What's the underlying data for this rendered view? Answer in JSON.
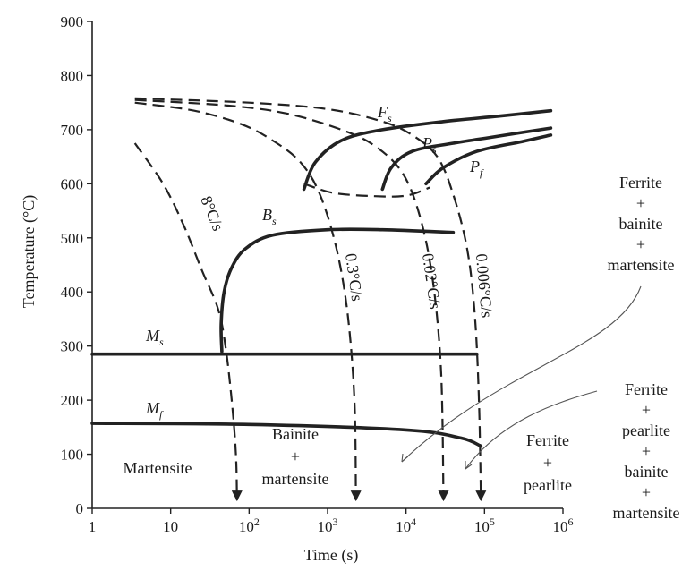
{
  "chart_data": {
    "type": "line",
    "title": "",
    "xlabel": "Time (s)",
    "ylabel": "Temperature (°C)",
    "x_scale": "log",
    "xlim": [
      1,
      1000000
    ],
    "ylim": [
      0,
      900
    ],
    "grid": false,
    "x_ticks": [
      {
        "value": 1,
        "base": "1",
        "exp": ""
      },
      {
        "value": 10,
        "base": "10",
        "exp": ""
      },
      {
        "value": 100,
        "base": "10",
        "exp": "2"
      },
      {
        "value": 1000,
        "base": "10",
        "exp": "3"
      },
      {
        "value": 10000,
        "base": "10",
        "exp": "4"
      },
      {
        "value": 100000,
        "base": "10",
        "exp": "5"
      },
      {
        "value": 1000000,
        "base": "10",
        "exp": "6"
      }
    ],
    "y_ticks": [
      0,
      100,
      200,
      300,
      400,
      500,
      600,
      700,
      800,
      900
    ],
    "transformation_curves": [
      {
        "label_base": "F",
        "label_sub": "s",
        "points": [
          [
            500,
            590
          ],
          [
            700,
            640
          ],
          [
            1500,
            680
          ],
          [
            5000,
            700
          ],
          [
            30000,
            715
          ],
          [
            150000,
            725
          ],
          [
            700000,
            735
          ]
        ]
      },
      {
        "label_base": "P",
        "label_sub": "s",
        "points": [
          [
            5000,
            590
          ],
          [
            6500,
            630
          ],
          [
            12000,
            660
          ],
          [
            40000,
            675
          ],
          [
            150000,
            688
          ],
          [
            700000,
            703
          ]
        ]
      },
      {
        "label_base": "P",
        "label_sub": "f",
        "points": [
          [
            18000,
            600
          ],
          [
            30000,
            630
          ],
          [
            80000,
            660
          ],
          [
            300000,
            678
          ],
          [
            700000,
            690
          ]
        ]
      },
      {
        "label_base": "B",
        "label_sub": "s",
        "points": [
          [
            40000,
            510
          ],
          [
            5000,
            515
          ],
          [
            1000,
            515
          ],
          [
            200,
            505
          ],
          [
            90,
            480
          ],
          [
            60,
            445
          ],
          [
            48,
            400
          ],
          [
            44,
            340
          ],
          [
            45,
            290
          ]
        ]
      },
      {
        "label_base": "M",
        "label_sub": "s",
        "points": [
          [
            1,
            285
          ],
          [
            80000,
            285
          ]
        ]
      },
      {
        "label_base": "M",
        "label_sub": "f",
        "points": [
          [
            1,
            157
          ],
          [
            100,
            155
          ],
          [
            10000,
            145
          ],
          [
            50000,
            130
          ],
          [
            90000,
            115
          ]
        ]
      }
    ],
    "cooling_curves": [
      {
        "rate_label": "8°C/s",
        "points": [
          [
            3.5,
            675
          ],
          [
            8,
            600
          ],
          [
            15,
            520
          ],
          [
            25,
            440
          ],
          [
            40,
            370
          ],
          [
            50,
            300
          ],
          [
            60,
            200
          ],
          [
            68,
            100
          ],
          [
            70,
            15
          ]
        ]
      },
      {
        "rate_label": "0.3°C/s",
        "points": [
          [
            3.5,
            750
          ],
          [
            20,
            735
          ],
          [
            80,
            710
          ],
          [
            200,
            680
          ],
          [
            450,
            640
          ],
          [
            800,
            580
          ],
          [
            1300,
            480
          ],
          [
            1800,
            360
          ],
          [
            2200,
            200
          ],
          [
            2300,
            15
          ]
        ]
      },
      {
        "rate_label": "0.02°C/s",
        "points": [
          [
            3.5,
            755
          ],
          [
            50,
            745
          ],
          [
            300,
            730
          ],
          [
            1500,
            700
          ],
          [
            4000,
            670
          ],
          [
            9000,
            620
          ],
          [
            15000,
            540
          ],
          [
            22000,
            420
          ],
          [
            28000,
            250
          ],
          [
            30000,
            15
          ]
        ]
      },
      {
        "rate_label": "0.006°C/s",
        "points": [
          [
            3.5,
            758
          ],
          [
            100,
            750
          ],
          [
            1000,
            738
          ],
          [
            5000,
            715
          ],
          [
            12000,
            690
          ],
          [
            25000,
            650
          ],
          [
            40000,
            580
          ],
          [
            60000,
            480
          ],
          [
            75000,
            360
          ],
          [
            85000,
            200
          ],
          [
            90000,
            15
          ]
        ]
      },
      {
        "rate_label": "",
        "points": [
          [
            500,
            600
          ],
          [
            1200,
            583
          ],
          [
            4000,
            577
          ],
          [
            10000,
            578
          ],
          [
            20000,
            593
          ]
        ]
      }
    ],
    "region_labels": [
      {
        "id": "martensite",
        "lines": [
          "Martensite"
        ]
      },
      {
        "id": "bainite-martensite",
        "lines": [
          "Bainite",
          "+",
          "martensite"
        ]
      },
      {
        "id": "ferrite-pearlite",
        "lines": [
          "Ferrite",
          "+",
          "pearlite"
        ]
      },
      {
        "id": "ferrite-bainite-martensite",
        "lines": [
          "Ferrite",
          "+",
          "bainite",
          "+",
          "martensite"
        ]
      },
      {
        "id": "ferrite-pearlite-bainite-martensite",
        "lines": [
          "Ferrite",
          "+",
          "pearlite",
          "+",
          "bainite",
          "+",
          "martensite"
        ]
      }
    ]
  }
}
